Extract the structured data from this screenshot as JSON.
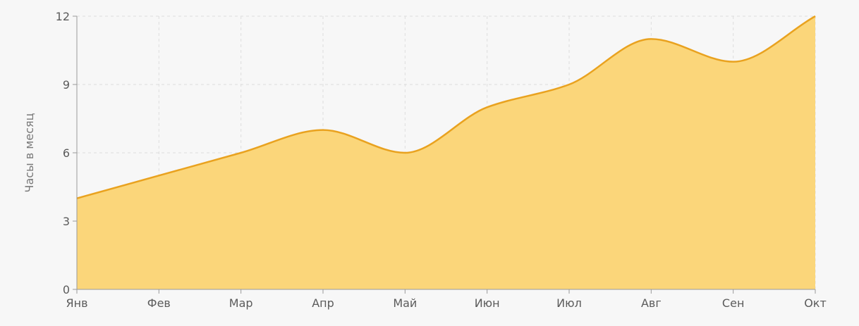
{
  "chart_data": {
    "type": "area",
    "categories": [
      "Янв",
      "Фев",
      "Мар",
      "Апр",
      "Май",
      "Июн",
      "Июл",
      "Авг",
      "Сен",
      "Окт"
    ],
    "series": [
      {
        "values": [
          4,
          5,
          6,
          7,
          6,
          8,
          9,
          11,
          10,
          12
        ]
      }
    ],
    "ylabel": "Часы в месяц",
    "ylim": [
      0,
      12
    ],
    "yticks": [
      0,
      3,
      6,
      9,
      12
    ],
    "grid": true,
    "colors": {
      "line": "#e9a21f",
      "fill": "#fbd67a",
      "grid": "#dedede",
      "axis": "#9a9a9a"
    }
  }
}
